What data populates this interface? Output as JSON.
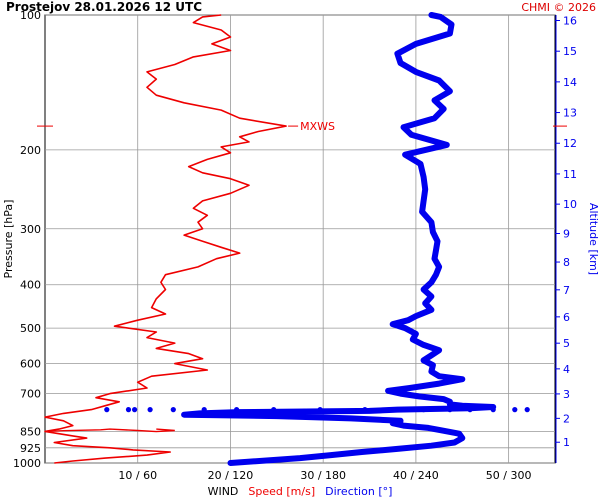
{
  "header": {
    "title": "Prostejov   28.01.2026 12 UTC",
    "copyright": "CHMI © 2026"
  },
  "colors": {
    "speed": "#ee0000",
    "direction": "#0000ee",
    "grid": "#999999",
    "text": "#000000"
  },
  "chart_data": {
    "type": "line",
    "title": "Prostejov   28.01.2026 12 UTC",
    "ylabel": "Pressure [hPa]",
    "y2label": "Altitude [km]",
    "xlabel_parts": [
      {
        "text": "WIND",
        "color": "#000000"
      },
      {
        "text": "Speed [m/s]",
        "color": "#ee0000"
      },
      {
        "text": "Direction [°]",
        "color": "#0000ee"
      }
    ],
    "y_scale": "log",
    "ylim": [
      1000,
      100
    ],
    "y_ticks": [
      100,
      200,
      300,
      400,
      500,
      600,
      700,
      850,
      925,
      1000
    ],
    "y2_ticks": [
      1,
      2,
      3,
      4,
      5,
      6,
      7,
      8,
      9,
      10,
      11,
      12,
      13,
      14,
      15,
      16
    ],
    "x_ticks": [
      "10 / 60",
      "20 / 120",
      "30 / 180",
      "40 / 240",
      "50 / 300"
    ],
    "speed_xlim": [
      0,
      55
    ],
    "direction_xlim": [
      0,
      330
    ],
    "annotation": "MXWS",
    "speed_series": {
      "name": "Speed [m/s]",
      "points": [
        [
          1000,
          1.0
        ],
        [
          990,
          3.0
        ],
        [
          975,
          6.5
        ],
        [
          960,
          11.0
        ],
        [
          945,
          13.5
        ],
        [
          935,
          9.5
        ],
        [
          925,
          7.0
        ],
        [
          915,
          3.0
        ],
        [
          900,
          1.0
        ],
        [
          880,
          4.5
        ],
        [
          870,
          3.0
        ],
        [
          860,
          1.5
        ],
        [
          850,
          0.0
        ],
        [
          840,
          1.5
        ],
        [
          825,
          3.0
        ],
        [
          805,
          2.0
        ],
        [
          790,
          0.0
        ],
        [
          775,
          2.0
        ],
        [
          760,
          5.0
        ],
        [
          745,
          6.5
        ],
        [
          730,
          8.0
        ],
        [
          715,
          5.5
        ],
        [
          700,
          7.0
        ],
        [
          680,
          11.0
        ],
        [
          660,
          10.0
        ],
        [
          640,
          11.5
        ],
        [
          620,
          17.5
        ],
        [
          600,
          14.0
        ],
        [
          585,
          17.0
        ],
        [
          570,
          15.5
        ],
        [
          555,
          12.0
        ],
        [
          540,
          14.0
        ],
        [
          525,
          11.0
        ],
        [
          510,
          12.0
        ],
        [
          495,
          7.5
        ],
        [
          480,
          10.0
        ],
        [
          465,
          13.0
        ],
        [
          450,
          11.5
        ],
        [
          430,
          12.0
        ],
        [
          410,
          13.0
        ],
        [
          395,
          12.5
        ],
        [
          380,
          13.0
        ],
        [
          365,
          16.5
        ],
        [
          350,
          18.5
        ],
        [
          340,
          21.0
        ],
        [
          330,
          19.0
        ],
        [
          320,
          17.0
        ],
        [
          310,
          15.0
        ],
        [
          300,
          17.0
        ],
        [
          290,
          16.5
        ],
        [
          280,
          17.5
        ],
        [
          270,
          16.0
        ],
        [
          260,
          17.0
        ],
        [
          250,
          20.0
        ],
        [
          240,
          22.0
        ],
        [
          232,
          20.0
        ],
        [
          225,
          17.0
        ],
        [
          218,
          15.5
        ],
        [
          210,
          17.5
        ],
        [
          203,
          20.0
        ],
        [
          197,
          19.0
        ],
        [
          192,
          22.0
        ],
        [
          187,
          21.0
        ],
        [
          182,
          23.0
        ],
        [
          177,
          26.0
        ],
        [
          170,
          21.0
        ],
        [
          163,
          19.0
        ],
        [
          157,
          15.0
        ],
        [
          151,
          12.0
        ],
        [
          145,
          11.0
        ],
        [
          139,
          12.0
        ],
        [
          134,
          11.0
        ],
        [
          129,
          14.0
        ],
        [
          124,
          16.0
        ],
        [
          120,
          20.0
        ],
        [
          116,
          18.0
        ],
        [
          112,
          20.0
        ],
        [
          108,
          19.0
        ],
        [
          104,
          16.0
        ],
        [
          101,
          17.0
        ],
        [
          100,
          19.0
        ]
      ]
    },
    "direction_series": {
      "name": "Direction [°]",
      "points": [
        [
          1000,
          120
        ],
        [
          975,
          165
        ],
        [
          960,
          185
        ],
        [
          945,
          205
        ],
        [
          930,
          228
        ],
        [
          915,
          250
        ],
        [
          900,
          265
        ],
        [
          880,
          270
        ],
        [
          860,
          268
        ],
        [
          845,
          256
        ],
        [
          835,
          248
        ],
        [
          825,
          232
        ],
        [
          815,
          225
        ],
        [
          805,
          230
        ],
        [
          795,
          198
        ],
        [
          786,
          150
        ],
        [
          780,
          90
        ],
        [
          775,
          100
        ],
        [
          770,
          125
        ],
        [
          765,
          210
        ],
        [
          760,
          228
        ],
        [
          755,
          275
        ],
        [
          750,
          290
        ],
        [
          745,
          270
        ],
        [
          740,
          262
        ],
        [
          730,
          262
        ],
        [
          720,
          258
        ],
        [
          710,
          242
        ],
        [
          700,
          230
        ],
        [
          690,
          222
        ],
        [
          680,
          236
        ],
        [
          665,
          255
        ],
        [
          650,
          270
        ],
        [
          640,
          255
        ],
        [
          625,
          250
        ],
        [
          605,
          251
        ],
        [
          590,
          245
        ],
        [
          575,
          250
        ],
        [
          560,
          255
        ],
        [
          545,
          245
        ],
        [
          530,
          238
        ],
        [
          515,
          240
        ],
        [
          500,
          233
        ],
        [
          490,
          225
        ],
        [
          480,
          235
        ],
        [
          470,
          240
        ],
        [
          455,
          250
        ],
        [
          440,
          246
        ],
        [
          425,
          250
        ],
        [
          410,
          245
        ],
        [
          395,
          250
        ],
        [
          380,
          253
        ],
        [
          365,
          255
        ],
        [
          350,
          252
        ],
        [
          335,
          253
        ],
        [
          320,
          254
        ],
        [
          305,
          251
        ],
        [
          290,
          250
        ],
        [
          275,
          244
        ],
        [
          260,
          245
        ],
        [
          245,
          246
        ],
        [
          230,
          245
        ],
        [
          215,
          243
        ],
        [
          205,
          233
        ],
        [
          195,
          260
        ],
        [
          185,
          237
        ],
        [
          178,
          232
        ],
        [
          170,
          252
        ],
        [
          162,
          258
        ],
        [
          155,
          252
        ],
        [
          148,
          262
        ],
        [
          140,
          255
        ],
        [
          134,
          240
        ],
        [
          128,
          230
        ],
        [
          122,
          228
        ],
        [
          116,
          240
        ],
        [
          110,
          262
        ],
        [
          105,
          263
        ],
        [
          101,
          256
        ],
        [
          100,
          250
        ]
      ]
    },
    "low_level_speed": {
      "name": "Speed [m/s]",
      "points": [
        [
          850,
          0
        ],
        [
          847,
          2
        ],
        [
          843,
          6
        ],
        [
          840,
          7
        ],
        [
          846,
          10
        ],
        [
          851,
          12
        ],
        [
          846,
          14
        ],
        [
          840,
          12
        ]
      ]
    },
    "dotted_direction": {
      "name": "Direction [°]",
      "points": [
        [
          760,
          40
        ],
        [
          760,
          54
        ],
        [
          760,
          58
        ],
        [
          760,
          68
        ],
        [
          760,
          83
        ],
        [
          760,
          103
        ],
        [
          760,
          124
        ],
        [
          760,
          148
        ],
        [
          760,
          178
        ],
        [
          760,
          207
        ],
        [
          760,
          232
        ],
        [
          760,
          245
        ],
        [
          760,
          262
        ],
        [
          760,
          275
        ],
        [
          760,
          290
        ],
        [
          760,
          304
        ],
        [
          760,
          312
        ]
      ]
    }
  }
}
